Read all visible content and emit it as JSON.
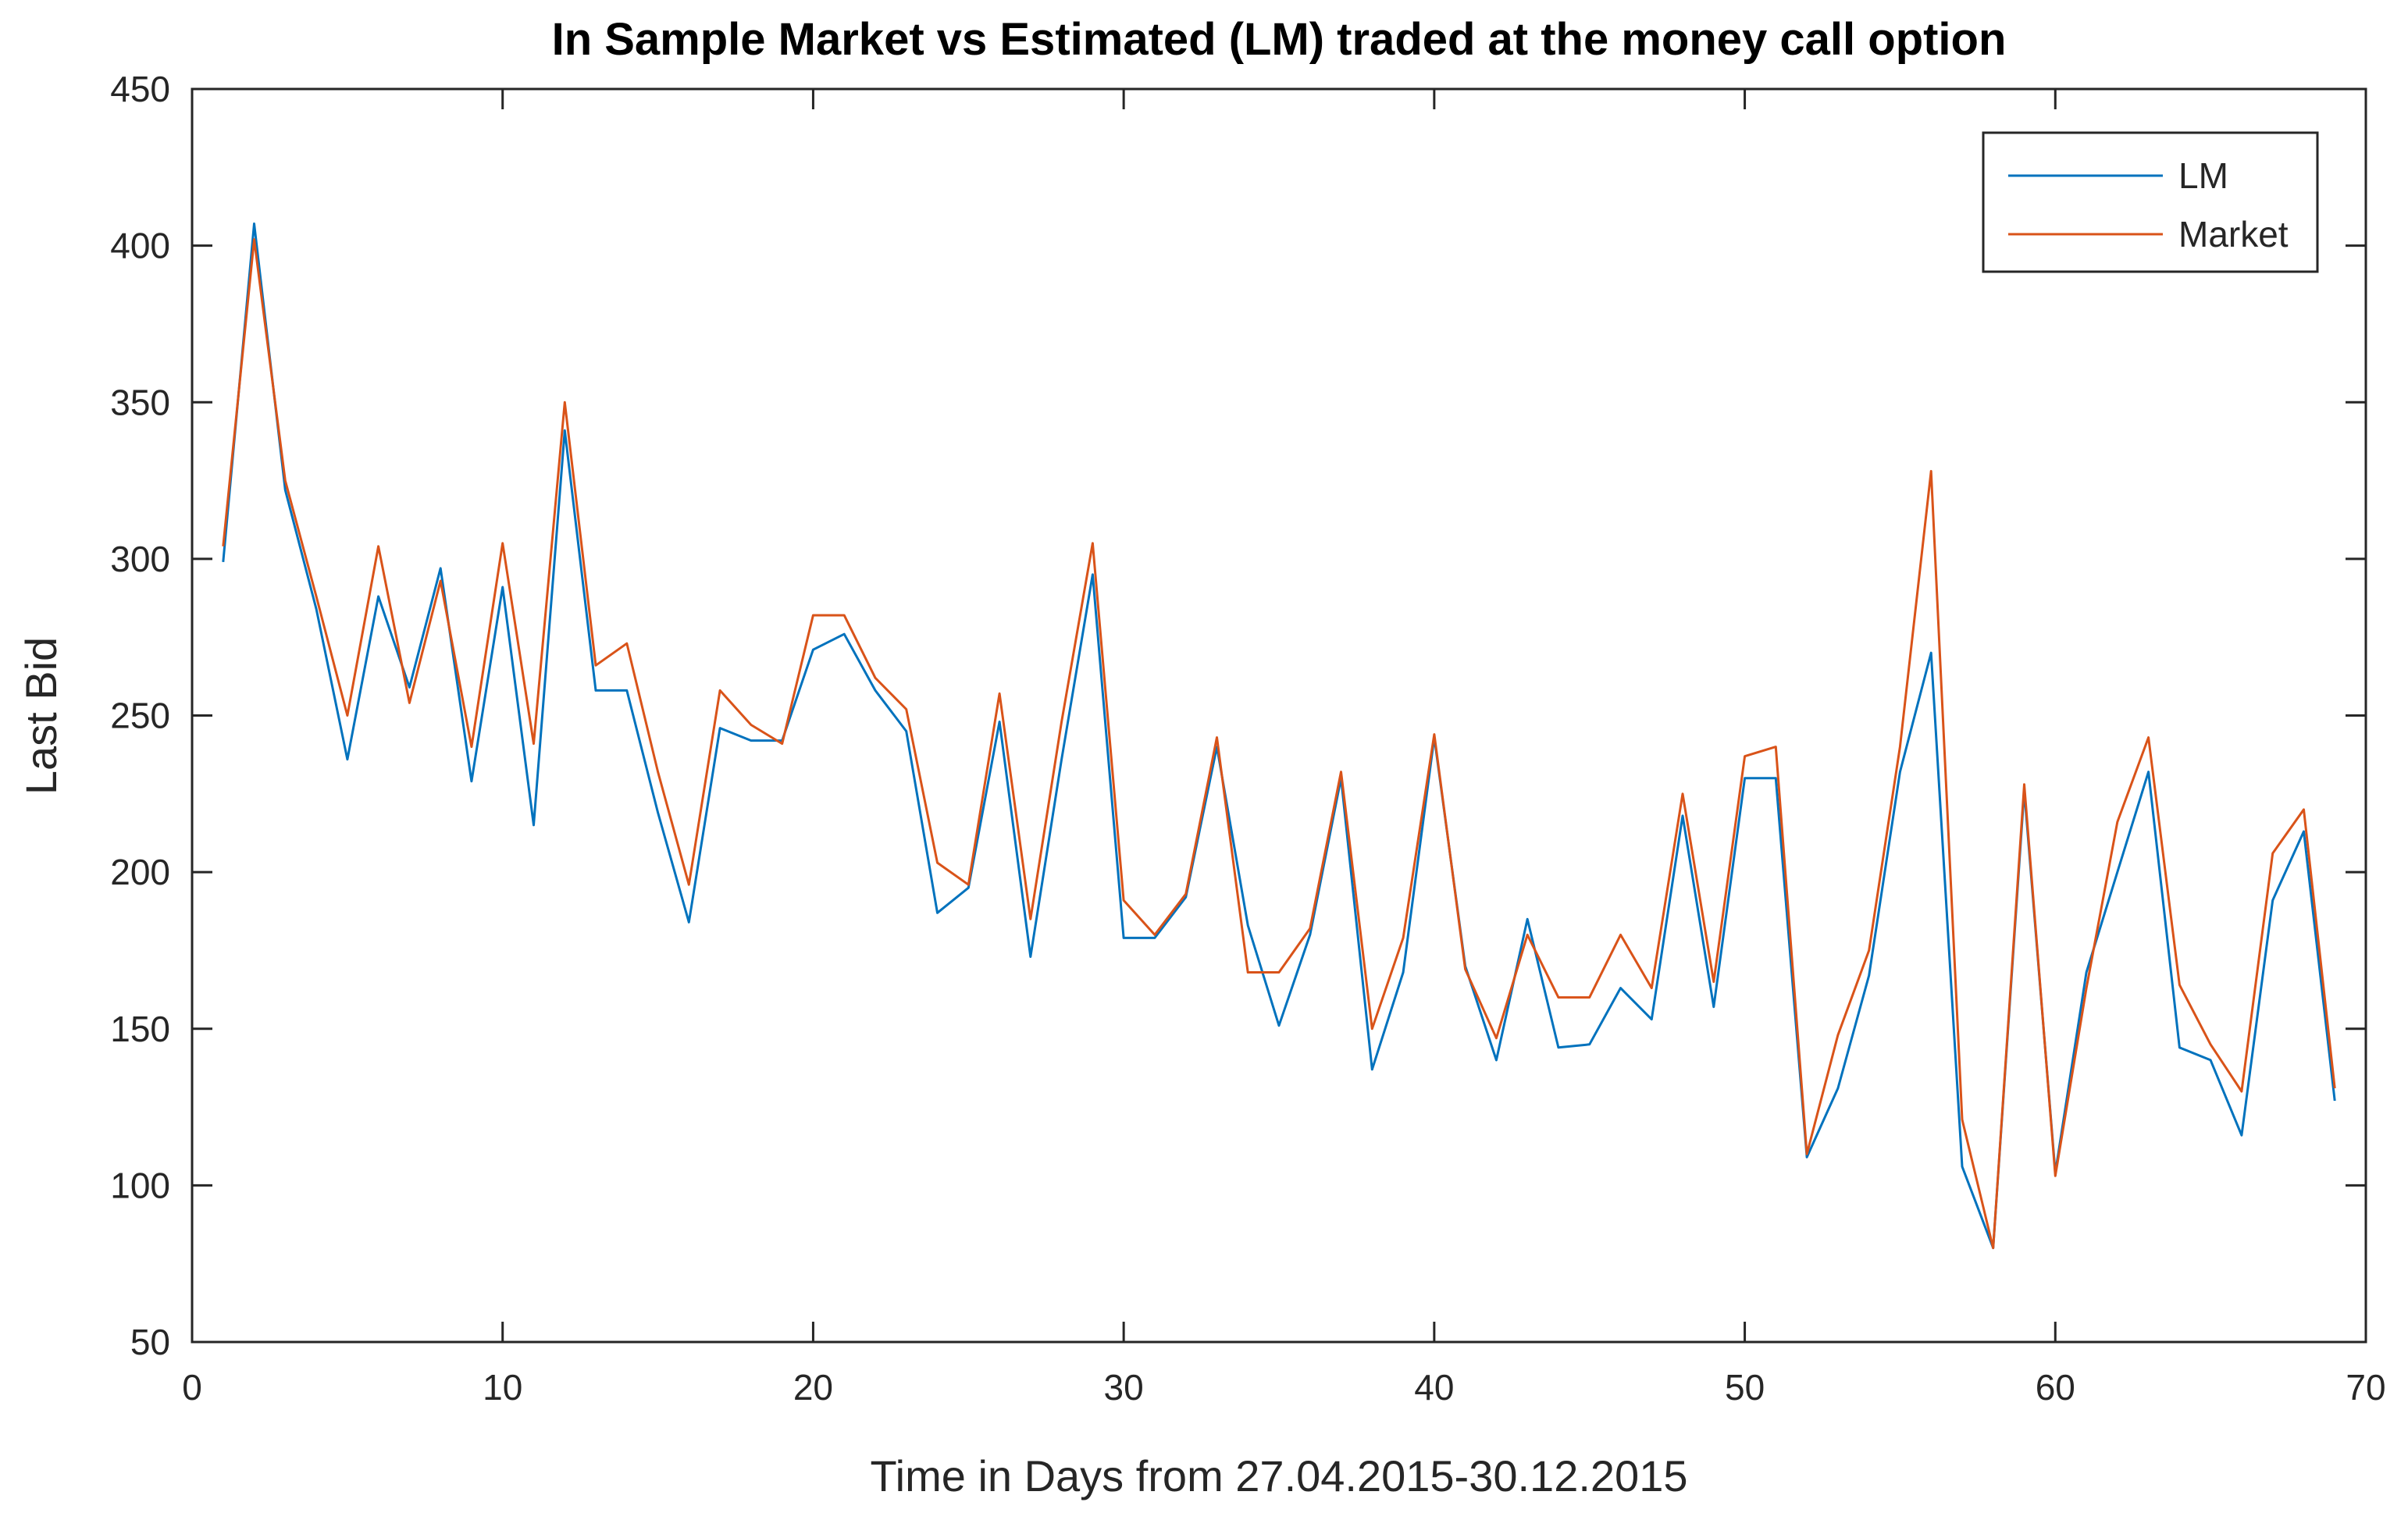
{
  "colors": {
    "lm": "#0072BD",
    "market": "#D95319",
    "axis": "#262626",
    "background": "#ffffff"
  },
  "chart_data": {
    "type": "line",
    "title": "In Sample Market vs Estimated (LM) traded at the money call option",
    "xlabel": "Time in Days from 27.04.2015-30.12.2015",
    "ylabel": "Last Bid",
    "xlim": [
      0,
      70
    ],
    "ylim": [
      50,
      450
    ],
    "xticks": [
      0,
      10,
      20,
      30,
      40,
      50,
      60,
      70
    ],
    "yticks": [
      50,
      100,
      150,
      200,
      250,
      300,
      350,
      400,
      450
    ],
    "grid": false,
    "legend_position": "top-right",
    "x": [
      1,
      2,
      3,
      4,
      5,
      6,
      7,
      8,
      9,
      10,
      11,
      12,
      13,
      14,
      15,
      16,
      17,
      18,
      19,
      20,
      21,
      22,
      23,
      24,
      25,
      26,
      27,
      28,
      29,
      30,
      31,
      32,
      33,
      34,
      35,
      36,
      37,
      38,
      39,
      40,
      41,
      42,
      43,
      44,
      45,
      46,
      47,
      48,
      49,
      50,
      51,
      52,
      53,
      54,
      55,
      56,
      57,
      58,
      59,
      60,
      61,
      62,
      63,
      64,
      65,
      66,
      67,
      68,
      69
    ],
    "series": [
      {
        "name": "LM",
        "color": "#0072BD",
        "values": [
          299,
          407,
          322,
          284,
          236,
          288,
          259,
          297,
          229,
          291,
          215,
          341,
          258,
          258,
          219,
          184,
          246,
          242,
          242,
          271,
          276,
          258,
          245,
          187,
          195,
          248,
          173,
          236,
          295,
          179,
          179,
          192,
          240,
          183,
          151,
          180,
          230,
          137,
          168,
          243,
          170,
          140,
          185,
          144,
          145,
          163,
          153,
          218,
          157,
          230,
          230,
          109,
          131,
          167,
          232,
          270,
          106,
          80,
          226,
          104,
          168,
          200,
          232,
          144,
          140,
          116,
          191,
          213,
          127
        ]
      },
      {
        "name": "Market",
        "color": "#D95319",
        "values": [
          304,
          402,
          325,
          288,
          250,
          304,
          254,
          293,
          240,
          305,
          241,
          350,
          266,
          273,
          232,
          196,
          258,
          247,
          241,
          282,
          282,
          262,
          252,
          203,
          196,
          257,
          185,
          248,
          305,
          191,
          180,
          193,
          243,
          168,
          168,
          182,
          232,
          150,
          179,
          244,
          169,
          147,
          180,
          160,
          160,
          180,
          163,
          225,
          165,
          237,
          240,
          110,
          148,
          175,
          240,
          328,
          121,
          80,
          228,
          103,
          163,
          216,
          243,
          164,
          145,
          130,
          206,
          220,
          131
        ]
      }
    ]
  }
}
